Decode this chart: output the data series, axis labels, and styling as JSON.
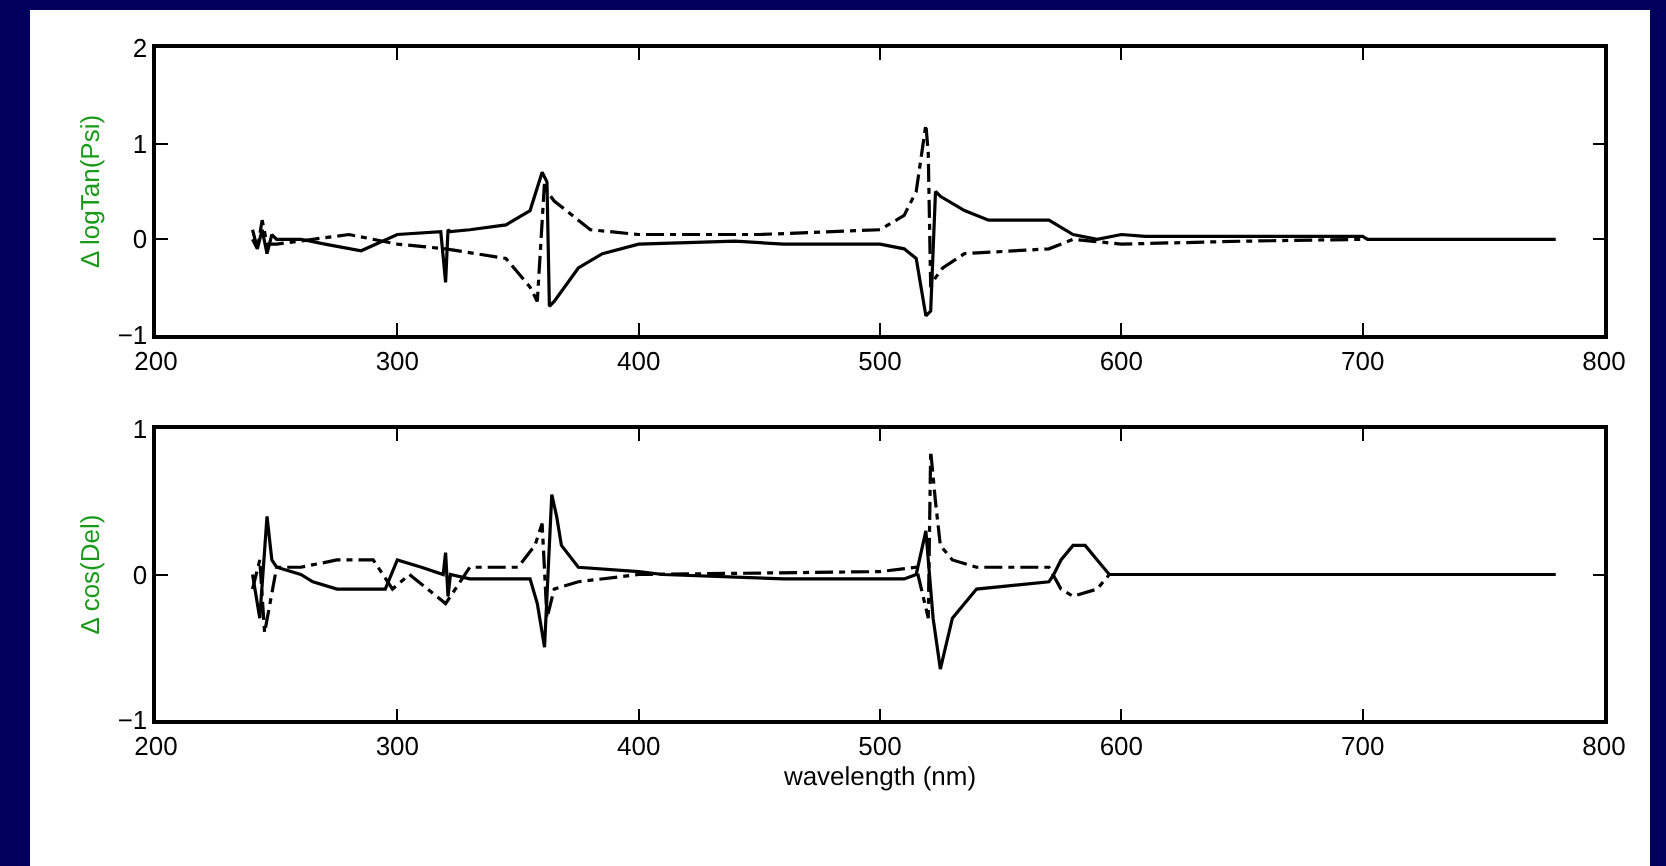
{
  "chart_data": [
    {
      "type": "line",
      "ylabel": "Δ logTan(Psi)",
      "xlim": [
        200,
        800
      ],
      "xticks": [
        200,
        300,
        400,
        500,
        600,
        700,
        800
      ],
      "ylim": [
        -1,
        2
      ],
      "yticks": [
        -1,
        0,
        1,
        2
      ],
      "marker": "none",
      "series": [
        {
          "color": "#000000",
          "line_style": "solid",
          "x": [
            240,
            242,
            244,
            246,
            248,
            250,
            260,
            270,
            285,
            300,
            318,
            320,
            321,
            322,
            330,
            345,
            355,
            360,
            362,
            363,
            365,
            375,
            385,
            400,
            440,
            460,
            500,
            510,
            515,
            519,
            521,
            523,
            525,
            535,
            545,
            570,
            580,
            590,
            600,
            610,
            650,
            700,
            702,
            780
          ],
          "values": [
            0,
            -0.1,
            0.1,
            -0.15,
            0.05,
            0,
            0,
            -0.05,
            -0.12,
            0.05,
            0.08,
            -0.45,
            0.1,
            0.08,
            0.1,
            0.15,
            0.3,
            0.7,
            0.6,
            -0.7,
            -0.65,
            -0.3,
            -0.15,
            -0.05,
            -0.02,
            -0.05,
            -0.05,
            -0.1,
            -0.2,
            -0.8,
            -0.75,
            0.5,
            0.45,
            0.3,
            0.2,
            0.2,
            0.05,
            0,
            0.05,
            0.03,
            0.03,
            0.03,
            0,
            0
          ]
        },
        {
          "color": "#000000",
          "line_style": "dashed",
          "x": [
            240,
            242,
            244,
            246,
            250,
            265,
            280,
            300,
            320,
            345,
            355,
            358,
            361,
            362,
            365,
            375,
            380,
            400,
            450,
            500,
            510,
            515,
            519,
            520,
            521,
            523,
            526,
            535,
            570,
            580,
            600,
            650,
            700
          ],
          "values": [
            0.1,
            -0.1,
            0.2,
            -0.05,
            -0.05,
            0,
            0.05,
            -0.05,
            -0.1,
            -0.2,
            -0.5,
            -0.65,
            0.6,
            0.5,
            0.4,
            0.2,
            0.1,
            0.05,
            0.05,
            0.1,
            0.25,
            0.5,
            1.2,
            0.9,
            -0.5,
            -0.4,
            -0.3,
            -0.15,
            -0.1,
            0,
            -0.05,
            -0.02,
            0
          ]
        }
      ]
    },
    {
      "type": "line",
      "xlabel": "wavelength (nm)",
      "ylabel": "Δ cos(Del)",
      "xlim": [
        200,
        800
      ],
      "xticks": [
        200,
        300,
        400,
        500,
        600,
        700,
        800
      ],
      "ylim": [
        -1,
        1
      ],
      "yticks": [
        -1,
        0,
        1
      ],
      "marker": "none",
      "series": [
        {
          "color": "#000000",
          "line_style": "solid",
          "x": [
            240,
            243,
            246,
            248,
            250,
            260,
            265,
            275,
            295,
            300,
            310,
            319,
            320,
            321,
            322,
            330,
            355,
            358,
            361,
            364,
            366,
            368,
            375,
            400,
            410,
            460,
            510,
            515,
            519,
            522,
            525,
            530,
            540,
            570,
            572,
            575,
            580,
            585,
            590,
            595,
            780
          ],
          "values": [
            0,
            -0.3,
            0.4,
            0.1,
            0.05,
            0,
            -0.05,
            -0.1,
            -0.1,
            0.1,
            0.05,
            0,
            0.15,
            -0.15,
            0,
            -0.03,
            -0.03,
            -0.2,
            -0.5,
            0.55,
            0.4,
            0.2,
            0.05,
            0.02,
            0,
            -0.03,
            -0.03,
            0,
            0.3,
            -0.3,
            -0.65,
            -0.3,
            -0.1,
            -0.05,
            0,
            0.1,
            0.2,
            0.2,
            0.1,
            0,
            0
          ]
        },
        {
          "color": "#000000",
          "line_style": "dashed",
          "x": [
            240,
            243,
            245,
            250,
            260,
            275,
            290,
            298,
            305,
            320,
            330,
            350,
            357,
            360,
            362,
            365,
            375,
            400,
            500,
            515,
            520,
            521,
            523,
            525,
            530,
            540,
            570,
            575,
            580,
            590,
            595,
            640
          ],
          "values": [
            -0.1,
            0.1,
            -0.4,
            0.05,
            0.05,
            0.1,
            0.1,
            -0.1,
            0,
            -0.2,
            0.05,
            0.05,
            0.2,
            0.35,
            -0.3,
            -0.1,
            -0.05,
            0,
            0.02,
            0.05,
            -0.3,
            0.85,
            0.5,
            0.2,
            0.1,
            0.05,
            0.05,
            -0.1,
            -0.15,
            -0.1,
            0,
            0
          ]
        }
      ]
    }
  ]
}
